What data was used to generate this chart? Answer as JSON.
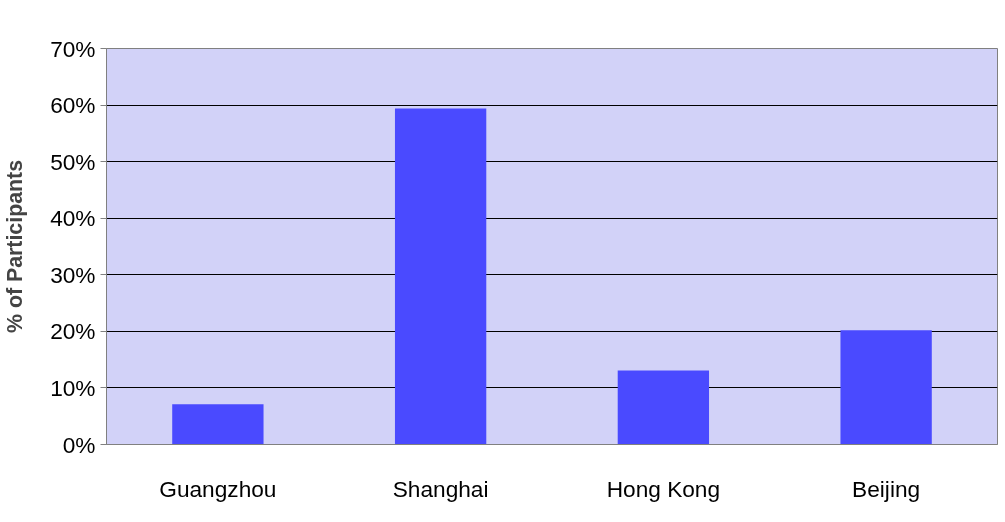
{
  "chart_data": {
    "type": "bar",
    "ylabel": "% of Participants",
    "categories": [
      "Guangzhou",
      "Shanghai",
      "Hong Kong",
      "Beijing"
    ],
    "values": [
      7.1,
      59.4,
      13.1,
      20.2
    ],
    "color": "#4a4aff",
    "ylim": [
      0,
      70
    ],
    "yticks": [
      {
        "value": 0,
        "label": "0%"
      },
      {
        "value": 10,
        "label": "10%"
      },
      {
        "value": 20,
        "label": "20%"
      },
      {
        "value": 30,
        "label": "30%"
      },
      {
        "value": 40,
        "label": "40%"
      },
      {
        "value": 50,
        "label": "50%"
      },
      {
        "value": 60,
        "label": "60%"
      },
      {
        "value": 70,
        "label": "70%"
      }
    ],
    "grid": "y"
  }
}
